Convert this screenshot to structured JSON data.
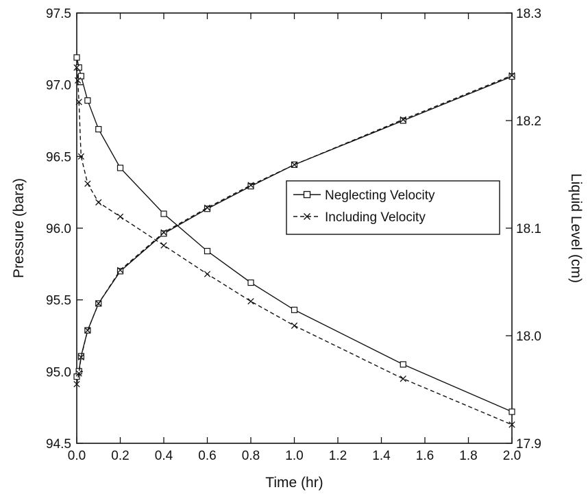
{
  "chart_data": {
    "type": "line",
    "title": "",
    "xlabel": "Time (hr)",
    "ylabel_left": "Pressure (bara)",
    "ylabel_right": "Liquid Level (cm)",
    "xlim": [
      0.0,
      2.0
    ],
    "ylim_left": [
      94.5,
      97.5
    ],
    "ylim_right": [
      17.9,
      18.3
    ],
    "x_ticks": [
      "0.0",
      "0.2",
      "0.4",
      "0.6",
      "0.8",
      "1.0",
      "1.2",
      "1.4",
      "1.6",
      "1.8",
      "2.0"
    ],
    "y_left_ticks": [
      "94.5",
      "95.0",
      "95.5",
      "96.0",
      "96.5",
      "97.0",
      "97.5"
    ],
    "y_right_ticks": [
      "17.9",
      "18.0",
      "18.1",
      "18.2",
      "18.3"
    ],
    "grid": false,
    "legend_position": "center-right",
    "legend": [
      {
        "label": "Neglecting Velocity",
        "marker": "square",
        "line": "solid"
      },
      {
        "label": "Including Velocity",
        "marker": "x",
        "line": "dashed"
      }
    ],
    "series": [
      {
        "name": "Neglecting Velocity",
        "quantity": "Pressure",
        "axis": "left",
        "marker": "square",
        "line": "solid",
        "x": [
          0.0,
          0.01,
          0.02,
          0.05,
          0.1,
          0.2,
          0.4,
          0.6,
          0.8,
          1.0,
          1.5,
          2.0
        ],
        "y": [
          97.19,
          97.12,
          97.06,
          96.89,
          96.69,
          96.42,
          96.1,
          95.84,
          95.62,
          95.43,
          95.05,
          94.72
        ]
      },
      {
        "name": "Including Velocity",
        "quantity": "Pressure",
        "axis": "left",
        "marker": "x",
        "line": "dashed",
        "x": [
          0.0,
          0.005,
          0.01,
          0.02,
          0.05,
          0.1,
          0.2,
          0.4,
          0.6,
          0.8,
          1.0,
          1.5,
          2.0
        ],
        "y": [
          97.12,
          97.03,
          96.88,
          96.5,
          96.31,
          96.18,
          96.08,
          95.88,
          95.68,
          95.49,
          95.32,
          94.95,
          94.63
        ]
      },
      {
        "name": "Neglecting Velocity",
        "quantity": "Liquid Level",
        "axis": "right",
        "marker": "square",
        "line": "solid",
        "x": [
          0.0,
          0.01,
          0.02,
          0.05,
          0.1,
          0.2,
          0.4,
          0.6,
          0.8,
          1.0,
          1.5,
          2.0
        ],
        "y": [
          17.962,
          17.967,
          17.981,
          18.005,
          18.03,
          18.06,
          18.095,
          18.118,
          18.139,
          18.159,
          18.2,
          18.241
        ]
      },
      {
        "name": "Including Velocity",
        "quantity": "Liquid Level",
        "axis": "right",
        "marker": "x",
        "line": "dashed",
        "x": [
          0.0,
          0.01,
          0.02,
          0.05,
          0.1,
          0.2,
          0.4,
          0.6,
          0.8,
          1.0,
          1.5,
          2.0
        ],
        "y": [
          17.955,
          17.965,
          17.98,
          18.005,
          18.03,
          18.061,
          18.096,
          18.119,
          18.14,
          18.159,
          18.201,
          18.242
        ]
      }
    ]
  }
}
